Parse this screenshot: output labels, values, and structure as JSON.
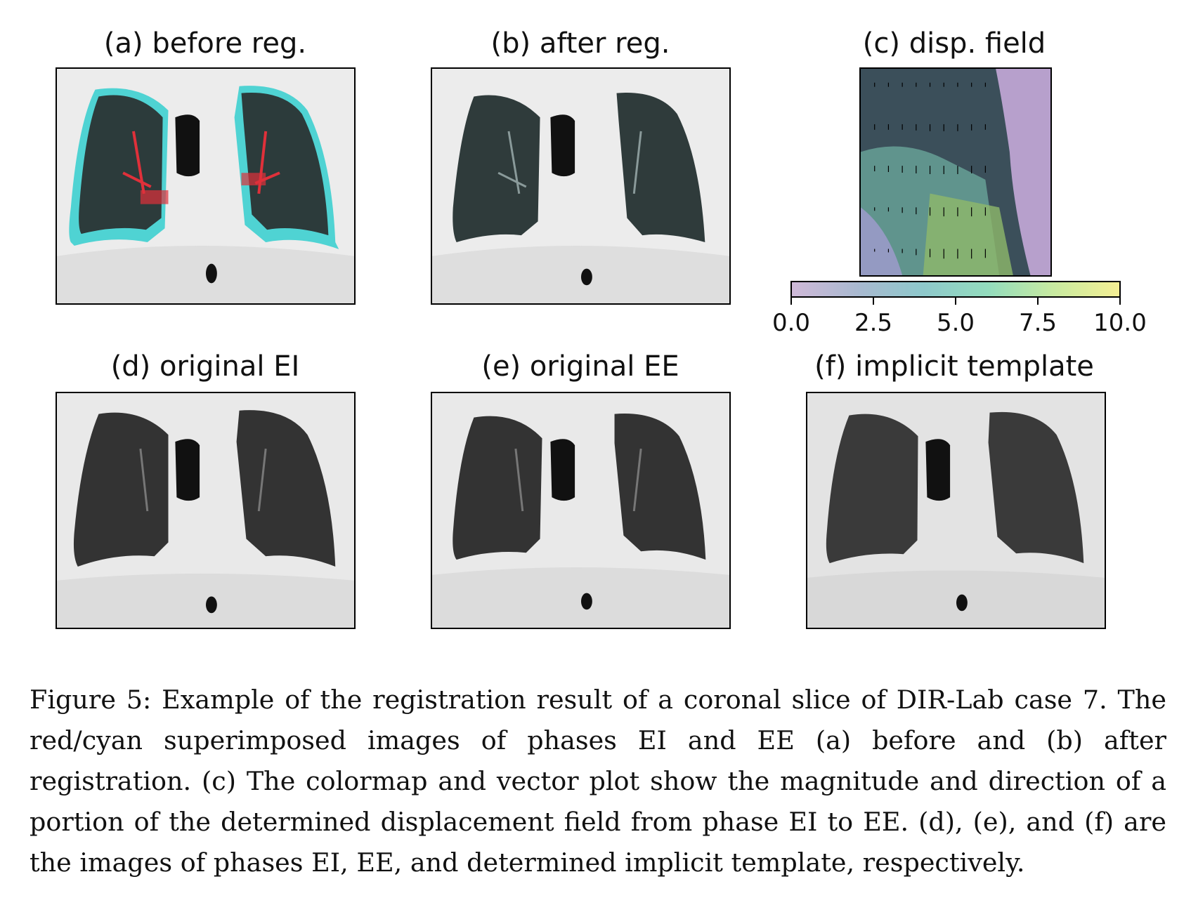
{
  "panels": {
    "a": {
      "title": "(a) before reg.",
      "image": "red/cyan superimposed CT before registration"
    },
    "b": {
      "title": "(b) after reg.",
      "image": "red/cyan superimposed CT after registration"
    },
    "c": {
      "title": "(c) disp. field",
      "image": "displacement magnitude colormap with vector arrows"
    },
    "d": {
      "title": "(d) original EI",
      "image": "coronal CT slice phase EI"
    },
    "e": {
      "title": "(e) original EE",
      "image": "coronal CT slice phase EE"
    },
    "f": {
      "title": "(f) implicit template",
      "image": "coronal CT slice implicit template"
    }
  },
  "colorbar": {
    "ticks": [
      "0.0",
      "2.5",
      "5.0",
      "7.5",
      "10.0"
    ],
    "range": [
      0.0,
      10.0
    ],
    "colormap": [
      "#cfb9d8",
      "#a9b9d0",
      "#8ec8cb",
      "#93dcbd",
      "#c8eaa0",
      "#f4ef94"
    ]
  },
  "caption": {
    "text": "Figure 5: Example of the registration result of a coronal slice of DIR-Lab case 7. The red/cyan superimposed images of phases EI and EE (a) before and (b) after registration. (c) The colormap and vector plot show the magnitude and direction of a portion of the determined displacement field from phase EI to EE. (d), (e), and (f) are the images of phases EI, EE, and determined implicit template, respectively."
  }
}
